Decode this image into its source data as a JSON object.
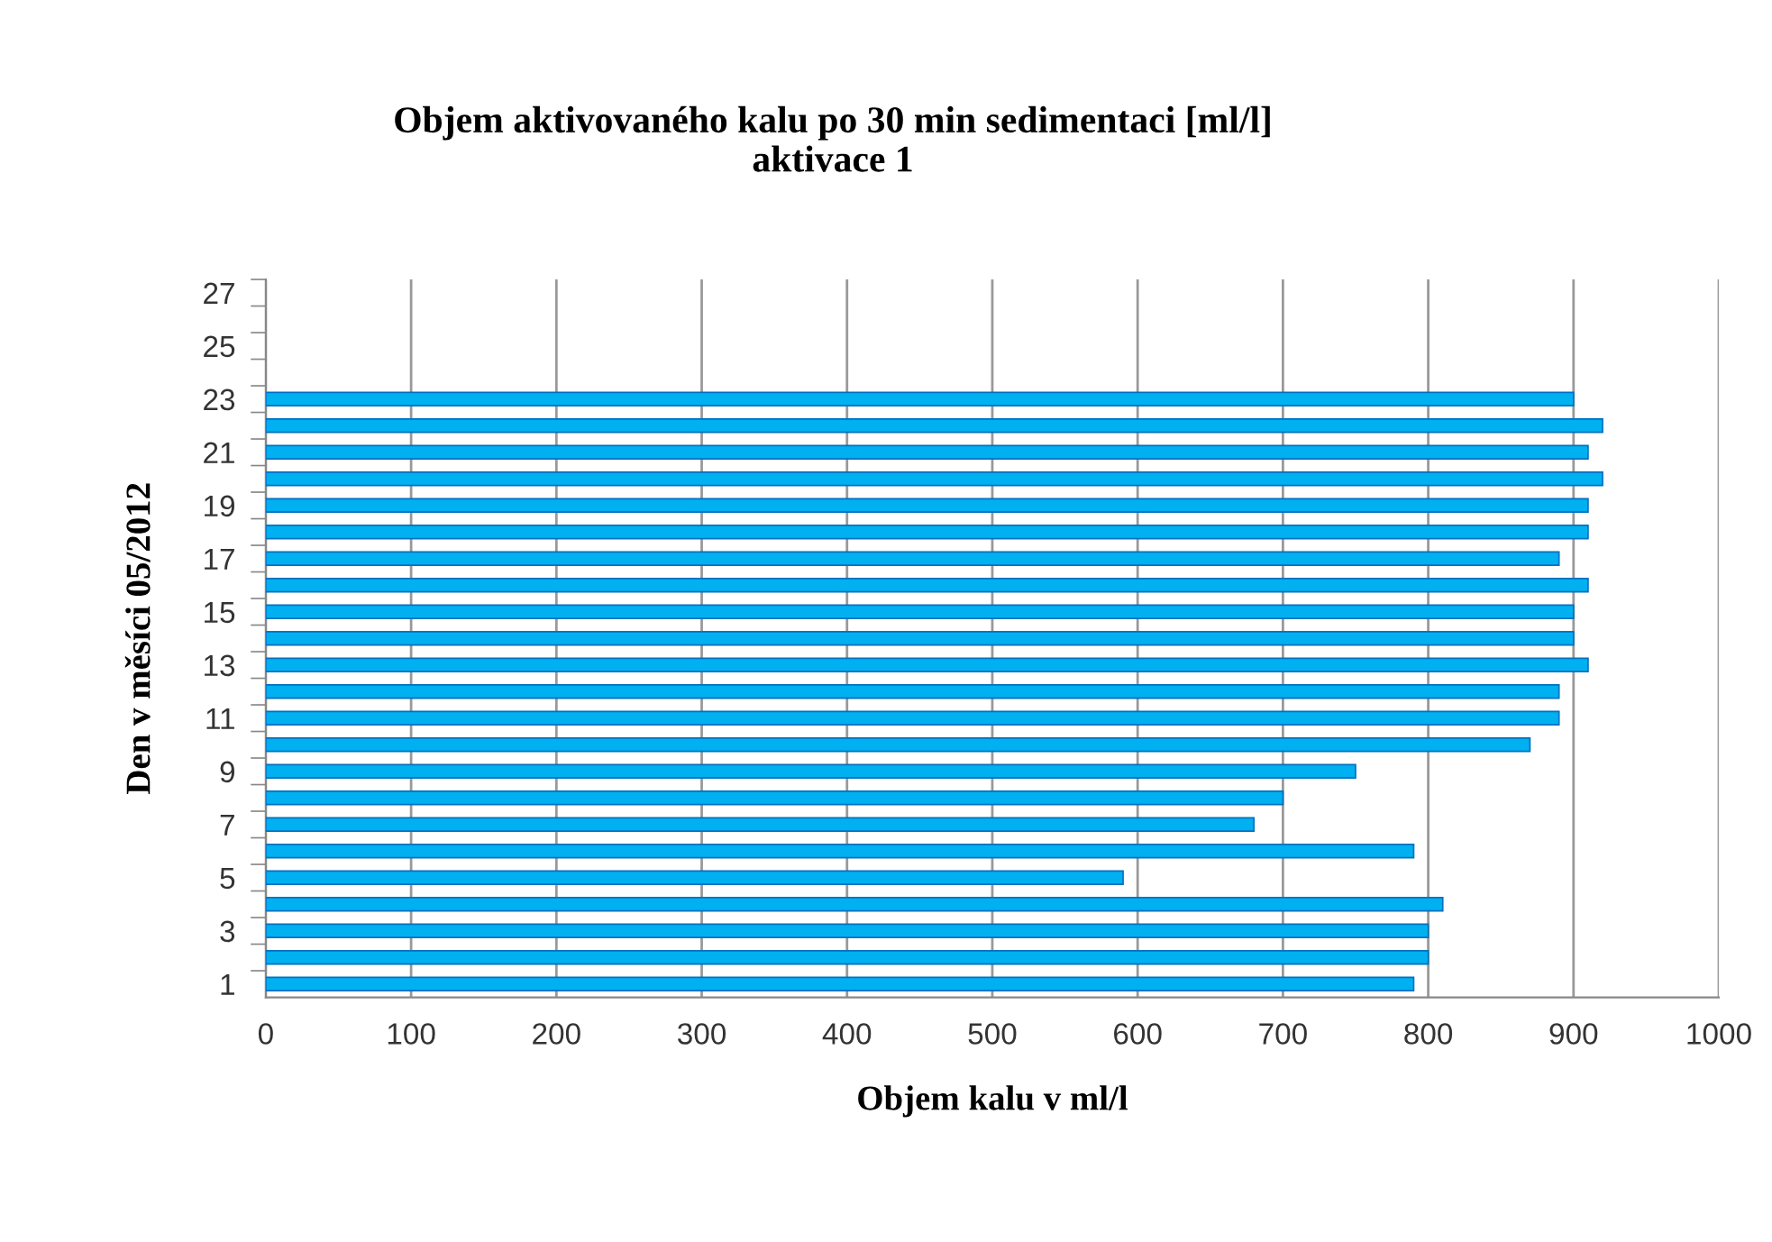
{
  "chart_data": {
    "type": "bar",
    "orientation": "horizontal",
    "title": "Objem aktivovaného kalu po 30 min sedimentaci [ml/l]\naktivace 1",
    "xlabel": "Objem kalu v ml/l",
    "ylabel": "Den v měsíci 05/2012",
    "categories": [
      "27",
      null,
      "25",
      null,
      "23",
      null,
      "21",
      null,
      "19",
      null,
      "17",
      null,
      "15",
      null,
      "13",
      null,
      "11",
      null,
      "9",
      null,
      "7",
      null,
      "5",
      null,
      "3",
      null,
      "1"
    ],
    "values": [
      null,
      null,
      null,
      null,
      900,
      920,
      910,
      920,
      910,
      910,
      890,
      910,
      900,
      900,
      910,
      890,
      890,
      870,
      750,
      700,
      680,
      790,
      590,
      810,
      800,
      800,
      790
    ],
    "color": "#00b0f0",
    "xlim": [
      0,
      1000
    ],
    "xticks": [
      0,
      100,
      200,
      300,
      400,
      500,
      600,
      700,
      800,
      900,
      1000
    ],
    "grid": "x",
    "legend": false
  }
}
